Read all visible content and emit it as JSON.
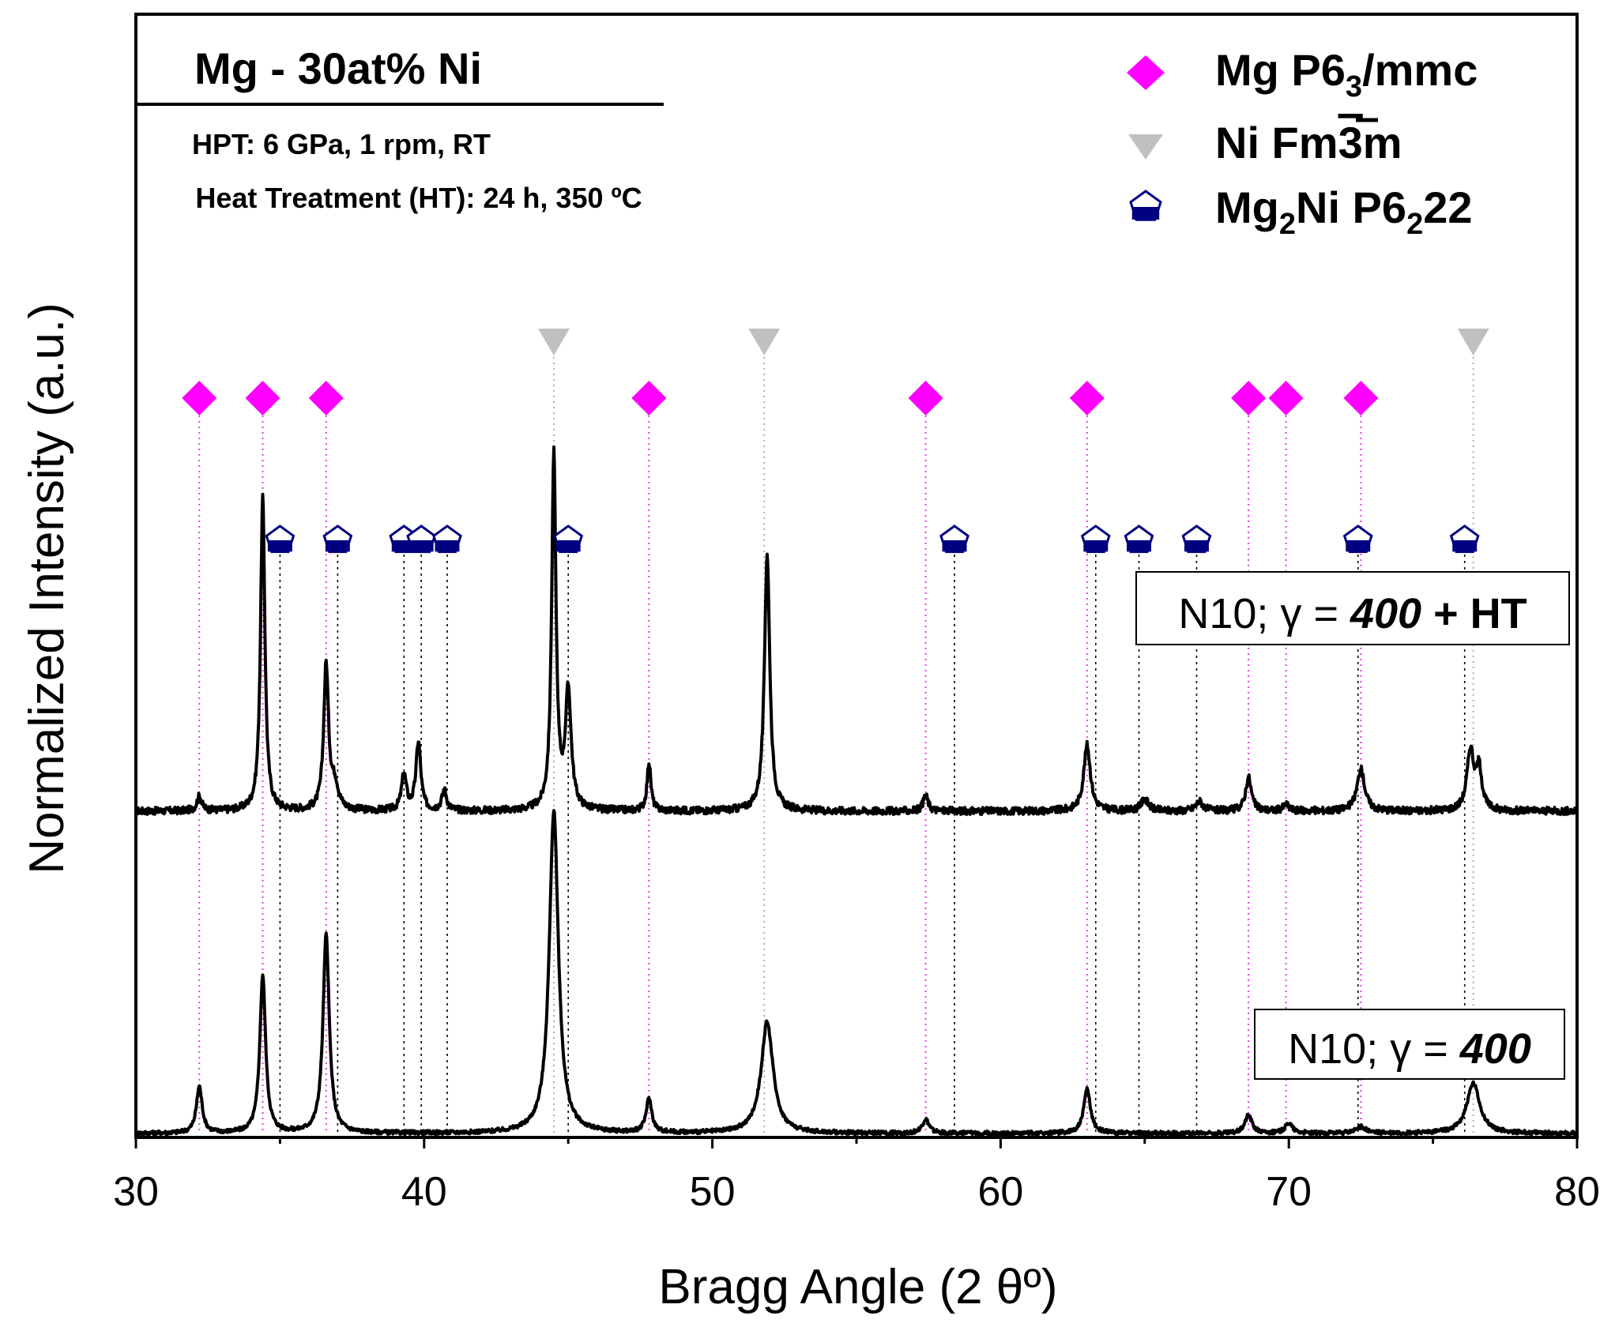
{
  "chart_data": {
    "type": "line",
    "title": "Mg - 30at% Ni",
    "subtitle_lines": [
      "HPT: 6 GPa, 1 rpm, RT",
      "Heat Treatment (HT): 24 h, 350 ºC"
    ],
    "xlabel": "Bragg Angle (2 θº)",
    "ylabel": "Normalized Intensity (a.u.)",
    "xlim": [
      30,
      80
    ],
    "xticks": [
      30,
      40,
      50,
      60,
      70,
      80
    ],
    "ylim": [
      0,
      10
    ],
    "legend": [
      {
        "label": "Mg P6",
        "sub": "3",
        "tail": "/mmc",
        "marker": "diamond",
        "color": "#ff00ff"
      },
      {
        "label": "Ni Fm",
        "over": "3",
        "tail": "m",
        "marker": "triangle-down",
        "color": "#c0c0c0"
      },
      {
        "label": "Mg",
        "sub": "2",
        "mid": "Ni P6",
        "sub2": "2",
        "tail": "22",
        "marker": "pentagon",
        "color": "#000080"
      }
    ],
    "series": [
      {
        "name": "N10; γ = 400 + HT",
        "label_plain": "N10; γ = ",
        "label_bold": "400",
        "label_tail": " + HT",
        "baseline": 4.0,
        "peaks": [
          {
            "x": 32.2,
            "h": 0.18,
            "w": 0.1
          },
          {
            "x": 34.4,
            "h": 3.9,
            "w": 0.09
          },
          {
            "x": 36.6,
            "h": 1.8,
            "w": 0.1
          },
          {
            "x": 36.9,
            "h": 0.3,
            "w": 0.15
          },
          {
            "x": 39.3,
            "h": 0.45,
            "w": 0.1
          },
          {
            "x": 39.8,
            "h": 0.85,
            "w": 0.1
          },
          {
            "x": 40.7,
            "h": 0.25,
            "w": 0.1
          },
          {
            "x": 44.5,
            "h": 4.4,
            "w": 0.09
          },
          {
            "x": 45.0,
            "h": 1.45,
            "w": 0.12
          },
          {
            "x": 47.8,
            "h": 0.6,
            "w": 0.08
          },
          {
            "x": 51.9,
            "h": 3.2,
            "w": 0.11
          },
          {
            "x": 57.4,
            "h": 0.2,
            "w": 0.1
          },
          {
            "x": 63.0,
            "h": 0.82,
            "w": 0.14
          },
          {
            "x": 65.0,
            "h": 0.15,
            "w": 0.15
          },
          {
            "x": 66.9,
            "h": 0.12,
            "w": 0.15
          },
          {
            "x": 68.6,
            "h": 0.42,
            "w": 0.12
          },
          {
            "x": 69.9,
            "h": 0.08,
            "w": 0.12
          },
          {
            "x": 72.5,
            "h": 0.52,
            "w": 0.16
          },
          {
            "x": 76.3,
            "h": 0.75,
            "w": 0.14
          },
          {
            "x": 76.6,
            "h": 0.5,
            "w": 0.12
          }
        ]
      },
      {
        "name": "N10; γ = 400",
        "label_plain": "N10;  γ = ",
        "label_bold": "400",
        "label_tail": "",
        "baseline": 0.0,
        "peaks": [
          {
            "x": 32.2,
            "h": 0.58,
            "w": 0.12
          },
          {
            "x": 34.4,
            "h": 1.96,
            "w": 0.12
          },
          {
            "x": 36.6,
            "h": 2.46,
            "w": 0.13
          },
          {
            "x": 44.5,
            "h": 4.0,
            "w": 0.19
          },
          {
            "x": 47.8,
            "h": 0.42,
            "w": 0.12
          },
          {
            "x": 51.9,
            "h": 1.38,
            "w": 0.25
          },
          {
            "x": 57.4,
            "h": 0.17,
            "w": 0.14
          },
          {
            "x": 63.0,
            "h": 0.55,
            "w": 0.14
          },
          {
            "x": 68.6,
            "h": 0.23,
            "w": 0.15
          },
          {
            "x": 70.0,
            "h": 0.13,
            "w": 0.15
          },
          {
            "x": 72.5,
            "h": 0.08,
            "w": 0.2
          },
          {
            "x": 76.4,
            "h": 0.62,
            "w": 0.27
          }
        ]
      }
    ],
    "reference_lines": {
      "Mg P63/mmc": [
        32.2,
        34.4,
        36.6,
        47.8,
        57.4,
        63.0,
        68.6,
        69.9,
        72.5
      ],
      "Ni Fm3m": [
        44.5,
        51.8,
        76.4
      ],
      "Mg2Ni P6222": [
        35.0,
        37.0,
        39.3,
        39.9,
        40.8,
        45.0,
        58.4,
        63.3,
        64.8,
        66.8,
        72.4,
        76.1
      ]
    }
  }
}
